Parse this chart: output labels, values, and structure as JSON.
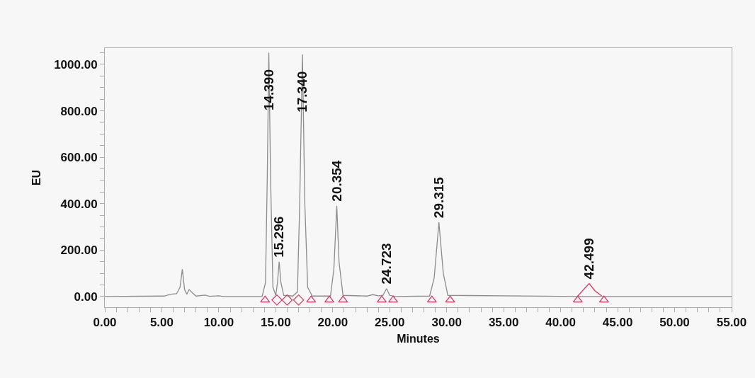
{
  "chart_data": {
    "type": "line",
    "xlabel": "Minutes",
    "ylabel": "EU",
    "xlim": [
      0,
      55
    ],
    "ylim": [
      -46,
      1070
    ],
    "xticks": [
      {
        "value": 0,
        "label": "0.00"
      },
      {
        "value": 1,
        "label": null
      },
      {
        "value": 2,
        "label": null
      },
      {
        "value": 3,
        "label": null
      },
      {
        "value": 4,
        "label": null
      },
      {
        "value": 5,
        "label": "5.00"
      },
      {
        "value": 6,
        "label": null
      },
      {
        "value": 7,
        "label": null
      },
      {
        "value": 8,
        "label": null
      },
      {
        "value": 9,
        "label": null
      },
      {
        "value": 10,
        "label": "10.00"
      },
      {
        "value": 11,
        "label": null
      },
      {
        "value": 12,
        "label": null
      },
      {
        "value": 13,
        "label": null
      },
      {
        "value": 14,
        "label": null
      },
      {
        "value": 15,
        "label": "15.00"
      },
      {
        "value": 16,
        "label": null
      },
      {
        "value": 17,
        "label": null
      },
      {
        "value": 18,
        "label": null
      },
      {
        "value": 19,
        "label": null
      },
      {
        "value": 20,
        "label": "20.00"
      },
      {
        "value": 21,
        "label": null
      },
      {
        "value": 22,
        "label": null
      },
      {
        "value": 23,
        "label": null
      },
      {
        "value": 24,
        "label": null
      },
      {
        "value": 25,
        "label": "25.00"
      },
      {
        "value": 26,
        "label": null
      },
      {
        "value": 27,
        "label": null
      },
      {
        "value": 28,
        "label": null
      },
      {
        "value": 29,
        "label": null
      },
      {
        "value": 30,
        "label": "30.00"
      },
      {
        "value": 31,
        "label": null
      },
      {
        "value": 32,
        "label": null
      },
      {
        "value": 33,
        "label": null
      },
      {
        "value": 34,
        "label": null
      },
      {
        "value": 35,
        "label": "35.00"
      },
      {
        "value": 36,
        "label": null
      },
      {
        "value": 37,
        "label": null
      },
      {
        "value": 38,
        "label": null
      },
      {
        "value": 39,
        "label": null
      },
      {
        "value": 40,
        "label": "40.00"
      },
      {
        "value": 41,
        "label": null
      },
      {
        "value": 42,
        "label": null
      },
      {
        "value": 43,
        "label": null
      },
      {
        "value": 44,
        "label": null
      },
      {
        "value": 45,
        "label": "45.00"
      },
      {
        "value": 46,
        "label": null
      },
      {
        "value": 47,
        "label": null
      },
      {
        "value": 48,
        "label": null
      },
      {
        "value": 49,
        "label": null
      },
      {
        "value": 50,
        "label": "50.00"
      },
      {
        "value": 51,
        "label": null
      },
      {
        "value": 52,
        "label": null
      },
      {
        "value": 53,
        "label": null
      },
      {
        "value": 54,
        "label": null
      },
      {
        "value": 55,
        "label": "55.00"
      }
    ],
    "yticks": [
      {
        "value": 0,
        "label": "0.00"
      },
      {
        "value": 50,
        "label": null
      },
      {
        "value": 100,
        "label": null
      },
      {
        "value": 150,
        "label": null
      },
      {
        "value": 200,
        "label": "200.00"
      },
      {
        "value": 250,
        "label": null
      },
      {
        "value": 300,
        "label": null
      },
      {
        "value": 350,
        "label": null
      },
      {
        "value": 400,
        "label": "400.00"
      },
      {
        "value": 450,
        "label": null
      },
      {
        "value": 500,
        "label": null
      },
      {
        "value": 550,
        "label": null
      },
      {
        "value": 600,
        "label": "600.00"
      },
      {
        "value": 650,
        "label": null
      },
      {
        "value": 700,
        "label": null
      },
      {
        "value": 750,
        "label": null
      },
      {
        "value": 800,
        "label": "800.00"
      },
      {
        "value": 850,
        "label": null
      },
      {
        "value": 900,
        "label": null
      },
      {
        "value": 950,
        "label": null
      },
      {
        "value": 1000,
        "label": "1000.00"
      },
      {
        "value": 1050,
        "label": null
      }
    ],
    "grid": false,
    "series": [
      {
        "color": "#8c8c8c",
        "marker": "none",
        "x": [
          0,
          5.2,
          5.8,
          6.3,
          6.6,
          6.8,
          7.0,
          7.2,
          7.4,
          7.7,
          8.0,
          8.8,
          9.2,
          10.0,
          10.4,
          13.8,
          14.1,
          14.25,
          14.39,
          14.55,
          14.75,
          15.0,
          15.15,
          15.296,
          15.45,
          15.7,
          16.5,
          16.9,
          17.1,
          17.34,
          17.55,
          17.8,
          18.2,
          19.8,
          20.1,
          20.354,
          20.55,
          20.9,
          23.0,
          23.5,
          24.0,
          24.4,
          24.723,
          25.0,
          25.5,
          28.5,
          28.9,
          29.315,
          29.7,
          30.1,
          41.5,
          55
        ],
        "values": [
          0,
          2,
          10,
          12,
          40,
          118,
          30,
          10,
          30,
          15,
          2,
          6,
          1,
          3,
          0,
          0,
          60,
          500,
          1050,
          500,
          40,
          5,
          60,
          150,
          60,
          5,
          2,
          20,
          400,
          1043,
          400,
          40,
          2,
          2,
          120,
          391,
          150,
          5,
          2,
          8,
          3,
          5,
          34,
          5,
          0,
          2,
          80,
          320,
          100,
          5,
          0,
          0
        ]
      },
      {
        "color": "#e8305a",
        "marker": "none",
        "x": [
          41.5,
          42.0,
          42.499,
          43.0,
          43.6
        ],
        "values": [
          2,
          30,
          56,
          25,
          3
        ]
      },
      {
        "type": "scatter",
        "color": "#e8305a",
        "marker": "triangle",
        "x": [
          14.06,
          18.1,
          19.7,
          20.9,
          24.3,
          25.3,
          28.7,
          30.3,
          41.5,
          43.8
        ],
        "values": [
          -15,
          -15,
          -15,
          -15,
          -15,
          -15,
          -15,
          -15,
          -15,
          -15
        ]
      },
      {
        "type": "scatter",
        "color": "#e8305a",
        "marker": "diamond",
        "x": [
          15.1,
          16.0,
          17.0
        ],
        "values": [
          -15,
          -15,
          -15
        ]
      }
    ],
    "annotations": [
      {
        "text": "14.390",
        "x": 14.39,
        "y": 1050
      },
      {
        "text": "15.296",
        "x": 15.296,
        "y": 150
      },
      {
        "text": "17.340",
        "x": 17.34,
        "y": 1043
      },
      {
        "text": "20.354",
        "x": 20.354,
        "y": 391
      },
      {
        "text": "24.723",
        "x": 24.723,
        "y": 34
      },
      {
        "text": "29.315",
        "x": 29.315,
        "y": 320
      },
      {
        "text": "42.499",
        "x": 42.499,
        "y": 56
      }
    ]
  }
}
